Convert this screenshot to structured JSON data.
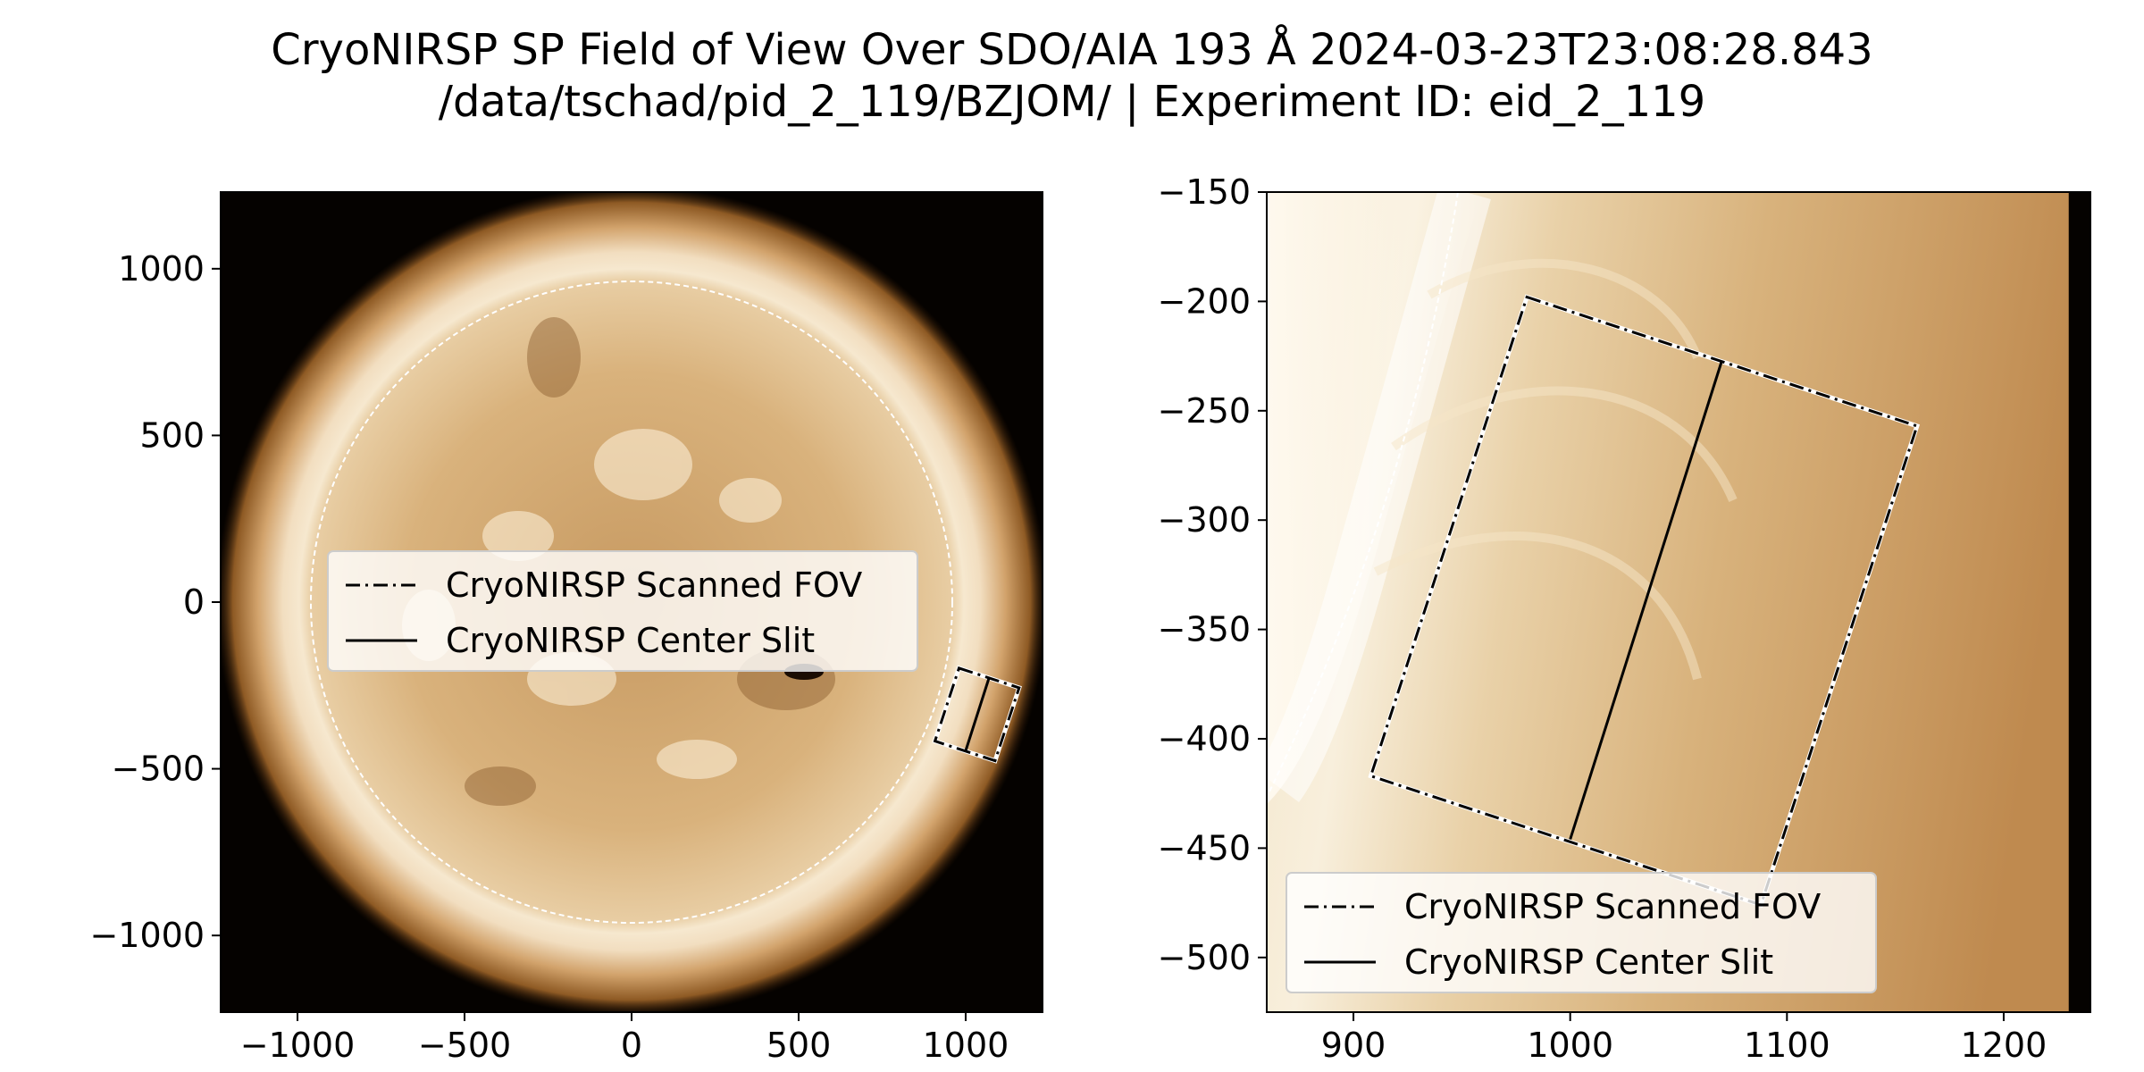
{
  "figure": {
    "title_line1": "CryoNIRSP SP Field of View Over SDO/AIA 193 Å 2024-03-23T23:08:28.843",
    "title_line2": "/data/tschad/pid_2_119/BZJOM/ | Experiment ID: eid_2_119"
  },
  "colors": {
    "disk_center": "#c79a62",
    "disk_mid": "#dcb886",
    "limb_bright": "#fbf4e6",
    "corona_edge": "#6b3f12",
    "sky": "#050200",
    "zoom_background": "#c08a4e",
    "legend_background": "#ffffff",
    "fov_line": "#000000",
    "limb_circle": "#ffffff"
  },
  "chart_data": [
    {
      "type": "image-overlay",
      "panel": "full-disk",
      "xlim": [
        -1230,
        1230
      ],
      "ylim": [
        -1230,
        1230
      ],
      "xticks": [
        -1000,
        -500,
        0,
        500,
        1000
      ],
      "yticks": [
        -1000,
        -500,
        0,
        500,
        1000
      ],
      "xtick_labels": [
        "−1000",
        "−500",
        "0",
        "500",
        "1000"
      ],
      "ytick_labels": [
        "−1000",
        "−500",
        "0",
        "500",
        "1000"
      ],
      "limb_radius_arcsec": 960,
      "scanned_fov": [
        [
          980,
          -198
        ],
        [
          1160,
          -257
        ],
        [
          1088,
          -476
        ],
        [
          908,
          -417
        ]
      ],
      "center_slit": [
        [
          1070,
          -227
        ],
        [
          1000,
          -446
        ]
      ],
      "legend": {
        "placement": "center",
        "entries": [
          {
            "label": "CryoNIRSP Scanned FOV",
            "style": "dashdot"
          },
          {
            "label": "CryoNIRSP Center Slit",
            "style": "solid"
          }
        ]
      }
    },
    {
      "type": "image-overlay",
      "panel": "zoom",
      "xlim": [
        860,
        1240
      ],
      "ylim": [
        -525,
        -150
      ],
      "xticks": [
        900,
        1000,
        1100,
        1200
      ],
      "yticks": [
        -500,
        -450,
        -400,
        -350,
        -300,
        -250,
        -200,
        -150
      ],
      "xtick_labels": [
        "900",
        "1000",
        "1100",
        "1200"
      ],
      "ytick_labels": [
        "−500",
        "−450",
        "−400",
        "−350",
        "−300",
        "−250",
        "−200",
        "−150"
      ],
      "data_edge_x": 1230,
      "scanned_fov": [
        [
          980,
          -198
        ],
        [
          1160,
          -257
        ],
        [
          1088,
          -476
        ],
        [
          908,
          -417
        ]
      ],
      "center_slit": [
        [
          1070,
          -227
        ],
        [
          1000,
          -446
        ]
      ],
      "legend": {
        "placement": "lower left",
        "entries": [
          {
            "label": "CryoNIRSP Scanned FOV",
            "style": "dashdot"
          },
          {
            "label": "CryoNIRSP Center Slit",
            "style": "solid"
          }
        ]
      }
    }
  ]
}
